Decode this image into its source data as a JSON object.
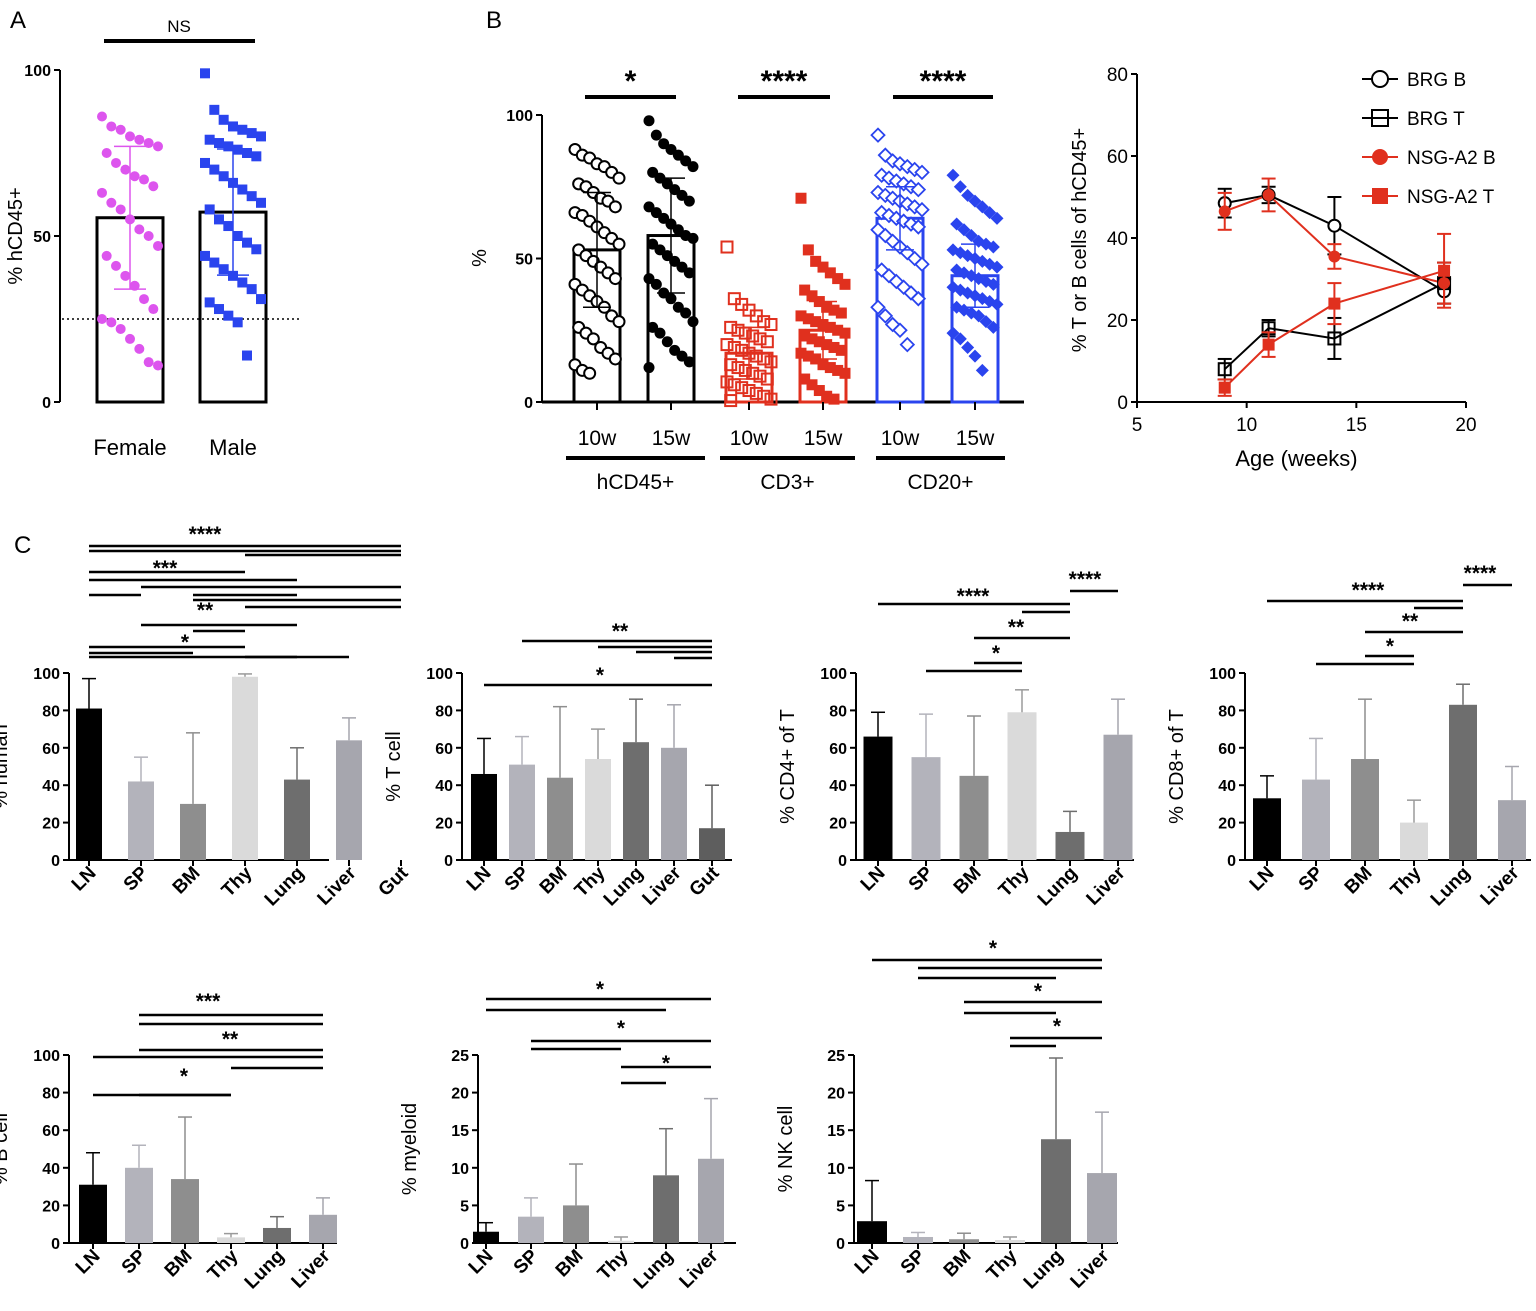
{
  "colors": {
    "female": "#dd55ee",
    "male": "#2a44ee",
    "black": "#000000",
    "red": "#e0301e",
    "blue": "#2a44ee",
    "gray_LN": "#000000",
    "gray_SP": "#b3b3bb",
    "gray_BM": "#8e8e8e",
    "gray_Thy": "#dadada",
    "gray_Lung": "#6e6e6e",
    "gray_Liver": "#a6a6ae",
    "gray_Gut": "#5e5e5e"
  },
  "chart_data": [
    {
      "id": "A",
      "type": "bar",
      "panel_label": "A",
      "ylabel": "% hCD45+",
      "ylim": [
        0,
        100
      ],
      "yticks": [
        0,
        50,
        100
      ],
      "categories": [
        "Female",
        "Male"
      ],
      "means": [
        55.5,
        57.2
      ],
      "sd": [
        21.5,
        19.0
      ],
      "threshold": 25,
      "significance": [
        {
          "from": 0,
          "to": 1,
          "label": "NS"
        }
      ],
      "points": {
        "Female": [
          86,
          83,
          82,
          80,
          79,
          78,
          77,
          75,
          72,
          70,
          68,
          67,
          65,
          63,
          60,
          58,
          55,
          52,
          50,
          47,
          44,
          41,
          38,
          35,
          31,
          28,
          25,
          24,
          22,
          19,
          16,
          12,
          11
        ],
        "Male": [
          99,
          88,
          85,
          83,
          82,
          81,
          80,
          79,
          78,
          77,
          76,
          75,
          74,
          72,
          70,
          68,
          66,
          64,
          62,
          60,
          58,
          55,
          53,
          50,
          48,
          46,
          44,
          42,
          40,
          38,
          36,
          34,
          31,
          30,
          28,
          26,
          24,
          14
        ]
      }
    },
    {
      "id": "B1",
      "type": "bar",
      "panel_label": "B",
      "ylabel": "%",
      "ylim": [
        0,
        100
      ],
      "yticks": [
        0,
        50,
        100
      ],
      "categories": [
        "10w",
        "15w",
        "10w",
        "15w",
        "10w",
        "15w"
      ],
      "groups": [
        "hCD45+",
        "CD3+",
        "CD20+"
      ],
      "means": [
        53,
        58,
        17,
        25,
        64,
        44
      ],
      "sd": [
        20,
        20,
        9,
        10,
        11,
        11
      ],
      "significance": [
        {
          "from": 0,
          "to": 1,
          "label": "*"
        },
        {
          "from": 2,
          "to": 3,
          "label": "****"
        },
        {
          "from": 4,
          "to": 5,
          "label": "****"
        }
      ],
      "points": [
        [
          88,
          86,
          85,
          83,
          82,
          80,
          78,
          76,
          75,
          73,
          71,
          70,
          68,
          66,
          65,
          63,
          61,
          59,
          57,
          55,
          53,
          51,
          49,
          47,
          45,
          43,
          41,
          39,
          37,
          35,
          33,
          30,
          28,
          26,
          24,
          22,
          19,
          17,
          15,
          13,
          11,
          10
        ],
        [
          98,
          93,
          90,
          88,
          86,
          84,
          82,
          80,
          78,
          76,
          74,
          72,
          70,
          68,
          66,
          64,
          62,
          60,
          58,
          57,
          55,
          53,
          51,
          49,
          47,
          45,
          43,
          41,
          38,
          36,
          33,
          31,
          28,
          26,
          24,
          21,
          18,
          16,
          14,
          12
        ],
        [
          54,
          36,
          34,
          32,
          30,
          28,
          27,
          26,
          25,
          24,
          23,
          22,
          21,
          20,
          19,
          18,
          17,
          16,
          15,
          14,
          13,
          12,
          11,
          10,
          9,
          8,
          7,
          6,
          5,
          4,
          3,
          2,
          1,
          0.5
        ],
        [
          71,
          53,
          49,
          47,
          45,
          43,
          41,
          39,
          37,
          35,
          33,
          32,
          31,
          30,
          29,
          28,
          27,
          26,
          25,
          24,
          23,
          22,
          21,
          20,
          19,
          18,
          17,
          16,
          15,
          13,
          12,
          11,
          10,
          8,
          6,
          4,
          2,
          1
        ],
        [
          93,
          86,
          84,
          83,
          82,
          81,
          80,
          79,
          78,
          77,
          76,
          75,
          74,
          73,
          72,
          71,
          70,
          69,
          68,
          67,
          66,
          65,
          64,
          63,
          62,
          61,
          60,
          58,
          56,
          54,
          52,
          50,
          48,
          46,
          44,
          42,
          40,
          38,
          36,
          33,
          30,
          27,
          25,
          20
        ],
        [
          79,
          75,
          72,
          70,
          68,
          66,
          64,
          62,
          60,
          58,
          56,
          55,
          54,
          53,
          52,
          51,
          50,
          49,
          48,
          47,
          46,
          45,
          44,
          43,
          42,
          41,
          40,
          39,
          38,
          37,
          36,
          35,
          34,
          33,
          32,
          31,
          30,
          28,
          26,
          24,
          22,
          19,
          16,
          11
        ]
      ]
    },
    {
      "id": "B2",
      "type": "line",
      "ylabel": "% T or B cells of hCD45+",
      "xlabel": "Age (weeks)",
      "xlim": [
        5,
        20
      ],
      "ylim": [
        0,
        80
      ],
      "xticks": [
        5,
        10,
        15,
        20
      ],
      "yticks": [
        0,
        20,
        40,
        60,
        80
      ],
      "x": [
        9,
        11,
        14,
        19
      ],
      "series": [
        {
          "name": "BRG B",
          "color": "#000000",
          "marker": "circle-open",
          "values": [
            48.5,
            50.5,
            43,
            27
          ],
          "err": [
            3.5,
            2,
            7,
            3
          ]
        },
        {
          "name": "BRG T",
          "color": "#000000",
          "marker": "square-open",
          "values": [
            8,
            18,
            15.5,
            29
          ],
          "err": [
            2.5,
            2,
            5,
            5
          ]
        },
        {
          "name": "NSG-A2 B",
          "color": "#e0301e",
          "marker": "circle-filled",
          "values": [
            46.5,
            50.5,
            35.5,
            29
          ],
          "err": [
            4.5,
            4,
            3,
            5
          ]
        },
        {
          "name": "NSG-A2 T",
          "color": "#e0301e",
          "marker": "square-filled",
          "values": [
            3.5,
            14,
            24,
            32
          ],
          "err": [
            2,
            3,
            5,
            9
          ]
        }
      ]
    },
    {
      "id": "C1",
      "type": "bar",
      "panel_label": "C",
      "ylabel": "% human",
      "ylim": [
        0,
        100
      ],
      "yticks": [
        0,
        20,
        40,
        60,
        80,
        100
      ],
      "categories": [
        "LN",
        "SP",
        "BM",
        "Thy",
        "Lung",
        "Liver",
        "Gut"
      ],
      "values": [
        81,
        42,
        30,
        98,
        43,
        64,
        0
      ],
      "sd": [
        16,
        13,
        38,
        1.5,
        17,
        12,
        0
      ],
      "significance_labels": [
        "****",
        "***",
        "**",
        "*"
      ]
    },
    {
      "id": "C2",
      "type": "bar",
      "ylabel": "% T cell",
      "ylim": [
        0,
        100
      ],
      "yticks": [
        0,
        20,
        40,
        60,
        80,
        100
      ],
      "categories": [
        "LN",
        "SP",
        "BM",
        "Thy",
        "Lung",
        "Liver",
        "Gut"
      ],
      "values": [
        46,
        51,
        44,
        54,
        63,
        60,
        17
      ],
      "sd": [
        19,
        15,
        38,
        16,
        23,
        23,
        23
      ],
      "significance_labels": [
        "**",
        "*"
      ]
    },
    {
      "id": "C3",
      "type": "bar",
      "ylabel": "% CD4+ of T",
      "ylim": [
        0,
        100
      ],
      "yticks": [
        0,
        20,
        40,
        60,
        80,
        100
      ],
      "categories": [
        "LN",
        "SP",
        "BM",
        "Thy",
        "Lung",
        "Liver"
      ],
      "values": [
        66,
        55,
        45,
        79,
        15,
        67
      ],
      "sd": [
        13,
        23,
        32,
        12,
        11,
        19
      ],
      "significance_labels": [
        "****",
        "****",
        "**",
        "*"
      ]
    },
    {
      "id": "C4",
      "type": "bar",
      "ylabel": "% CD8+ of T",
      "ylim": [
        0,
        100
      ],
      "yticks": [
        0,
        20,
        40,
        60,
        80,
        100
      ],
      "categories": [
        "LN",
        "SP",
        "BM",
        "Thy",
        "Lung",
        "Liver"
      ],
      "values": [
        33,
        43,
        54,
        20,
        83,
        32
      ],
      "sd": [
        12,
        22,
        32,
        12,
        11,
        18
      ],
      "significance_labels": [
        "****",
        "****",
        "**",
        "*"
      ]
    },
    {
      "id": "C5",
      "type": "bar",
      "ylabel": "% B cell",
      "ylim": [
        0,
        100
      ],
      "yticks": [
        0,
        20,
        40,
        60,
        80,
        100
      ],
      "categories": [
        "LN",
        "SP",
        "BM",
        "Thy",
        "Lung",
        "Liver"
      ],
      "values": [
        31,
        40,
        34,
        3,
        8,
        15
      ],
      "sd": [
        17,
        12,
        33,
        2,
        6,
        9
      ],
      "significance_labels": [
        "***",
        "**",
        "*"
      ]
    },
    {
      "id": "C6",
      "type": "bar",
      "ylabel": "% myeloid",
      "ylim": [
        0,
        25
      ],
      "yticks": [
        0,
        5,
        10,
        15,
        20,
        25
      ],
      "categories": [
        "LN",
        "SP",
        "BM",
        "Thy",
        "Lung",
        "Liver"
      ],
      "values": [
        1.5,
        3.5,
        5,
        0.3,
        9,
        11.2
      ],
      "sd": [
        1.2,
        2.5,
        5.5,
        0.5,
        6.2,
        8
      ],
      "significance_labels": [
        "*",
        "*",
        "*"
      ]
    },
    {
      "id": "C7",
      "type": "bar",
      "ylabel": "% NK cell",
      "ylim": [
        0,
        25
      ],
      "yticks": [
        0,
        5,
        10,
        15,
        20,
        25
      ],
      "categories": [
        "LN",
        "SP",
        "BM",
        "Thy",
        "Lung",
        "Liver"
      ],
      "values": [
        2.9,
        0.8,
        0.5,
        0.4,
        13.8,
        9.3
      ],
      "sd": [
        5.4,
        0.6,
        0.8,
        0.4,
        10.8,
        8.1
      ],
      "significance_labels": [
        "*",
        "*",
        "*"
      ]
    }
  ]
}
